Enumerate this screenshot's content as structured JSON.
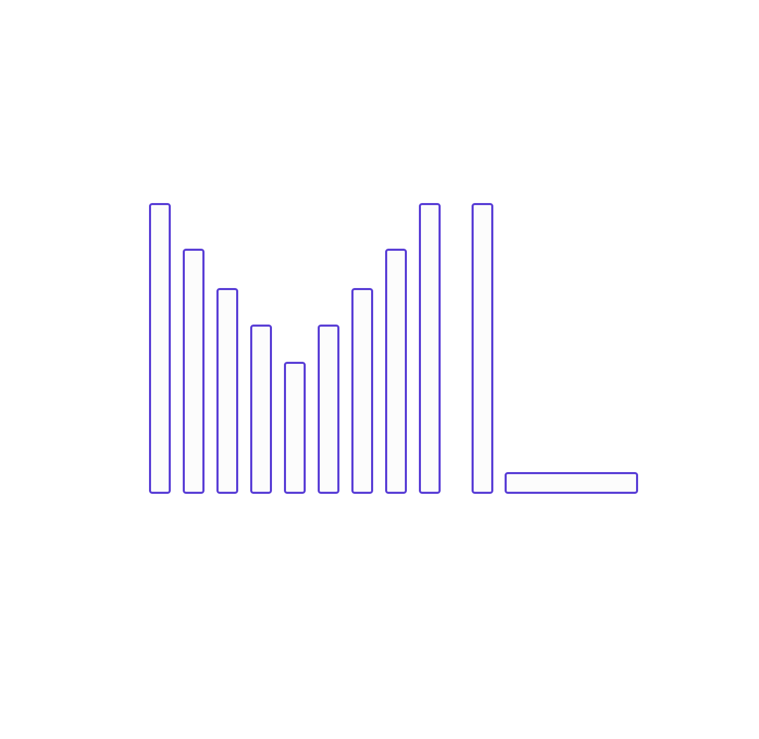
{
  "colors": {
    "background": "#ffffff",
    "outline": "#5a3fd6",
    "fill": "#fcfcfc"
  },
  "graphic": {
    "vertical_bars": [
      1.0,
      0.843,
      0.708,
      0.582,
      0.453,
      0.582,
      0.708,
      0.843,
      1.0
    ],
    "standalone_bar": 1.0,
    "horizontal_bar_relative_length": 0.46
  }
}
